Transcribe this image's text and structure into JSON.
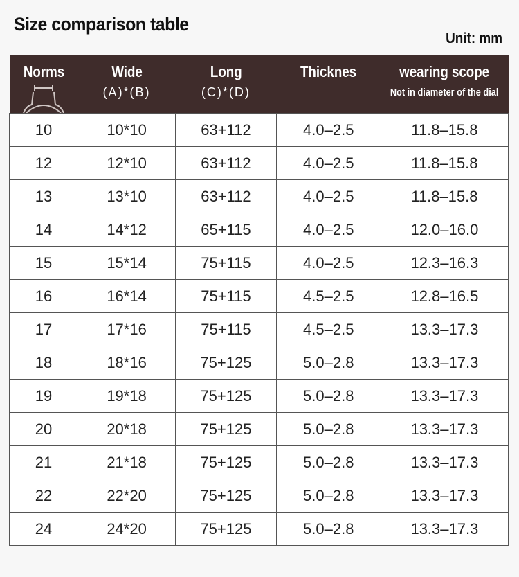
{
  "title": "Size comparison table",
  "unit": "Unit:  mm",
  "header_color": "#3f2c2b",
  "headers": [
    {
      "title": "Norms",
      "sub": ""
    },
    {
      "title": "Wide",
      "sub": "(A)*(B)"
    },
    {
      "title": "Long",
      "sub": "(C)*(D)"
    },
    {
      "title": "Thicknes",
      "sub": ""
    },
    {
      "title": "wearing  scope",
      "sub": "Not in diameter of the dial"
    }
  ],
  "rows": [
    [
      "10",
      "10*10",
      "63+112",
      "4.0–2.5",
      "11.8–15.8"
    ],
    [
      "12",
      "12*10",
      "63+112",
      "4.0–2.5",
      "11.8–15.8"
    ],
    [
      "13",
      "13*10",
      "63+112",
      "4.0–2.5",
      "11.8–15.8"
    ],
    [
      "14",
      "14*12",
      "65+115",
      "4.0–2.5",
      "12.0–16.0"
    ],
    [
      "15",
      "15*14",
      "75+115",
      "4.0–2.5",
      "12.3–16.3"
    ],
    [
      "16",
      "16*14",
      "75+115",
      "4.5–2.5",
      "12.8–16.5"
    ],
    [
      "17",
      "17*16",
      "75+115",
      "4.5–2.5",
      "13.3–17.3"
    ],
    [
      "18",
      "18*16",
      "75+125",
      "5.0–2.8",
      "13.3–17.3"
    ],
    [
      "19",
      "19*18",
      "75+125",
      "5.0–2.8",
      "13.3–17.3"
    ],
    [
      "20",
      "20*18",
      "75+125",
      "5.0–2.8",
      "13.3–17.3"
    ],
    [
      "21",
      "21*18",
      "75+125",
      "5.0–2.8",
      "13.3–17.3"
    ],
    [
      "22",
      "22*20",
      "75+125",
      "5.0–2.8",
      "13.3–17.3"
    ],
    [
      "24",
      "24*20",
      "75+125",
      "5.0–2.8",
      "13.3–17.3"
    ]
  ]
}
